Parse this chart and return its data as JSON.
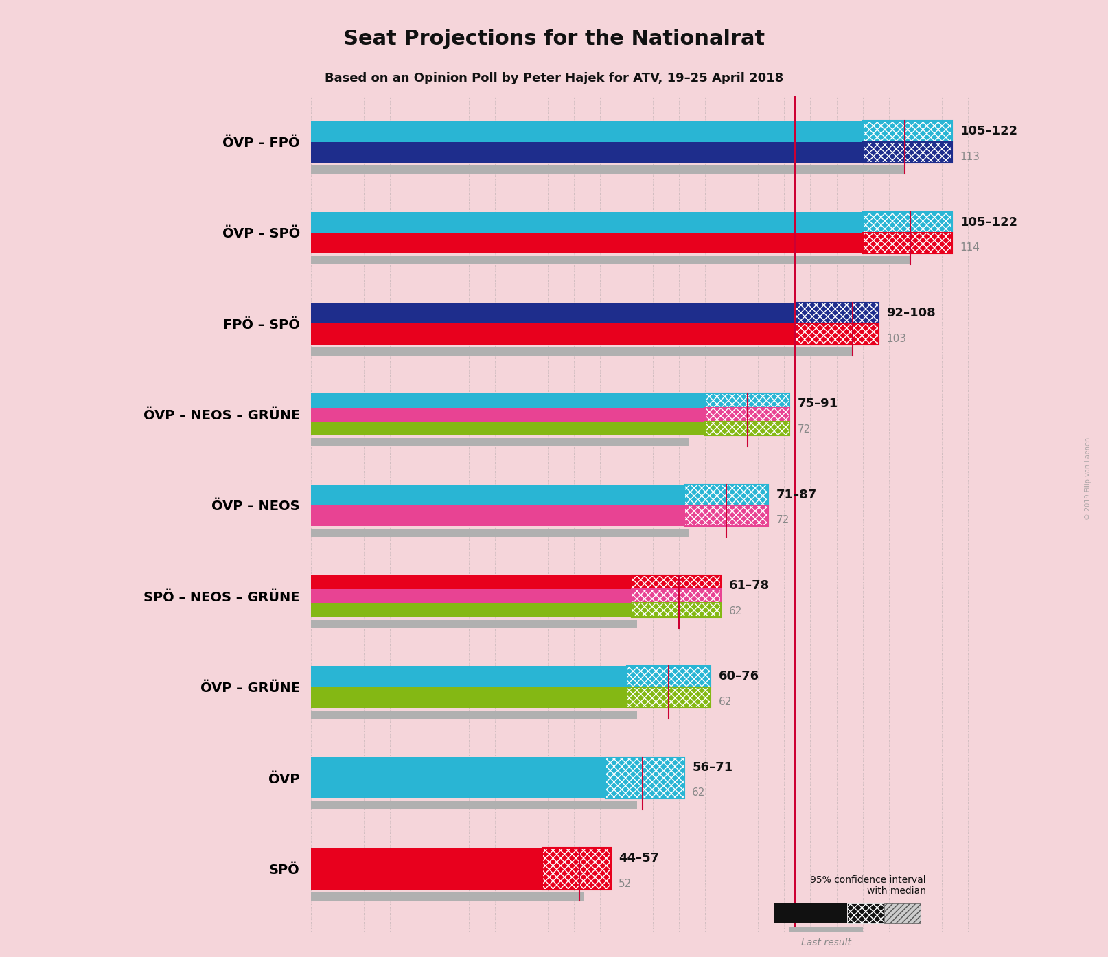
{
  "title": "Seat Projections for the Nationalrat",
  "subtitle": "Based on an Opinion Poll by Peter Hajek for ATV, 19–25 April 2018",
  "background_color": "#f5d5da",
  "coalitions": [
    {
      "name": "ÖVP – FPÖ",
      "parties": [
        "ÖVP",
        "FPÖ"
      ],
      "colors": [
        "#29b5d4",
        "#1e2d8c"
      ],
      "hatch_colors": [
        "#29b5d4",
        "#1e2d8c"
      ],
      "ci_low": 105,
      "ci_high": 122,
      "median": 113,
      "last_result": 113,
      "label": "105–122",
      "median_label": "113"
    },
    {
      "name": "ÖVP – SPÖ",
      "parties": [
        "ÖVP",
        "SPÖ"
      ],
      "colors": [
        "#29b5d4",
        "#e8001d"
      ],
      "hatch_colors": [
        "#29b5d4",
        "#e8001d"
      ],
      "ci_low": 105,
      "ci_high": 122,
      "median": 114,
      "last_result": 114,
      "label": "105–122",
      "median_label": "114"
    },
    {
      "name": "FPÖ – SPÖ",
      "parties": [
        "FPÖ",
        "SPÖ"
      ],
      "colors": [
        "#1e2d8c",
        "#e8001d"
      ],
      "hatch_colors": [
        "#1e2d8c",
        "#e8001d"
      ],
      "ci_low": 92,
      "ci_high": 108,
      "median": 103,
      "last_result": 103,
      "label": "92–108",
      "median_label": "103"
    },
    {
      "name": "ÖVP – NEOS – GRÜNE",
      "parties": [
        "ÖVP",
        "NEOS",
        "GRÜNE"
      ],
      "colors": [
        "#29b5d4",
        "#e84393",
        "#84b814"
      ],
      "hatch_colors": [
        "#29b5d4",
        "#e84393",
        "#84b814"
      ],
      "ci_low": 75,
      "ci_high": 91,
      "median": 83,
      "last_result": 72,
      "label": "75–91",
      "median_label": "72"
    },
    {
      "name": "ÖVP – NEOS",
      "parties": [
        "ÖVP",
        "NEOS"
      ],
      "colors": [
        "#29b5d4",
        "#e84393"
      ],
      "hatch_colors": [
        "#29b5d4",
        "#e84393"
      ],
      "ci_low": 71,
      "ci_high": 87,
      "median": 79,
      "last_result": 72,
      "label": "71–87",
      "median_label": "72"
    },
    {
      "name": "SPÖ – NEOS – GRÜNE",
      "parties": [
        "SPÖ",
        "NEOS",
        "GRÜNE"
      ],
      "colors": [
        "#e8001d",
        "#e84393",
        "#84b814"
      ],
      "hatch_colors": [
        "#e8001d",
        "#e84393",
        "#84b814"
      ],
      "ci_low": 61,
      "ci_high": 78,
      "median": 70,
      "last_result": 62,
      "label": "61–78",
      "median_label": "62"
    },
    {
      "name": "ÖVP – GRÜNE",
      "parties": [
        "ÖVP",
        "GRÜNE"
      ],
      "colors": [
        "#29b5d4",
        "#84b814"
      ],
      "hatch_colors": [
        "#29b5d4",
        "#84b814"
      ],
      "ci_low": 60,
      "ci_high": 76,
      "median": 68,
      "last_result": 62,
      "label": "60–76",
      "median_label": "62"
    },
    {
      "name": "ÖVP",
      "parties": [
        "ÖVP"
      ],
      "colors": [
        "#29b5d4"
      ],
      "hatch_colors": [
        "#29b5d4"
      ],
      "ci_low": 56,
      "ci_high": 71,
      "median": 63,
      "last_result": 62,
      "label": "56–71",
      "median_label": "62"
    },
    {
      "name": "SPÖ",
      "parties": [
        "SPÖ"
      ],
      "colors": [
        "#e8001d"
      ],
      "hatch_colors": [
        "#e8001d"
      ],
      "ci_low": 44,
      "ci_high": 57,
      "median": 51,
      "last_result": 52,
      "label": "44–57",
      "median_label": "52"
    }
  ],
  "majority_line": 92,
  "x_max": 130,
  "watermark": "© 2019 Filip van Laenen"
}
